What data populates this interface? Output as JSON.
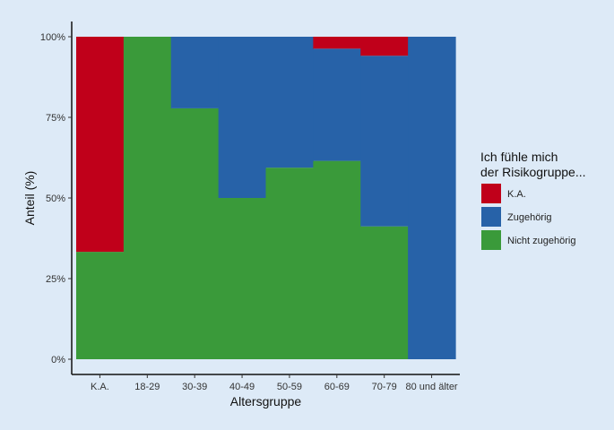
{
  "chart_data": {
    "type": "bar",
    "stacked": true,
    "normalized": true,
    "title": "",
    "xlabel": "Altersgruppe",
    "ylabel": "Anteil (%)",
    "ylim": [
      0,
      100
    ],
    "yticks": [
      0,
      25,
      50,
      75,
      100
    ],
    "ytick_labels": [
      "0%",
      "25%",
      "50%",
      "75%",
      "100%"
    ],
    "grid": false,
    "categories": [
      "K.A.",
      "18-29",
      "30-39",
      "40-49",
      "50-59",
      "60-69",
      "70-79",
      "80 und älter"
    ],
    "series": [
      {
        "name": "Nicht zugehörig",
        "color": "#3a9a3a",
        "values": [
          33.3,
          100,
          77.8,
          50,
          59.4,
          61.5,
          41.2,
          0
        ]
      },
      {
        "name": "Zugehörig",
        "color": "#2762a8",
        "values": [
          0,
          0,
          22.2,
          50,
          40.6,
          34.8,
          52.9,
          100
        ]
      },
      {
        "name": "K.A.",
        "color": "#c0001a",
        "values": [
          66.7,
          0,
          0,
          0,
          0,
          3.7,
          5.9,
          0
        ]
      }
    ],
    "legend": {
      "title_lines": [
        "Ich fühle mich",
        "der Risikogruppe..."
      ],
      "placement": "right",
      "items": [
        {
          "label": "K.A.",
          "color": "#c0001a"
        },
        {
          "label": "Zugehörig",
          "color": "#2762a8"
        },
        {
          "label": "Nicht zugehörig",
          "color": "#3a9a3a"
        }
      ]
    }
  }
}
